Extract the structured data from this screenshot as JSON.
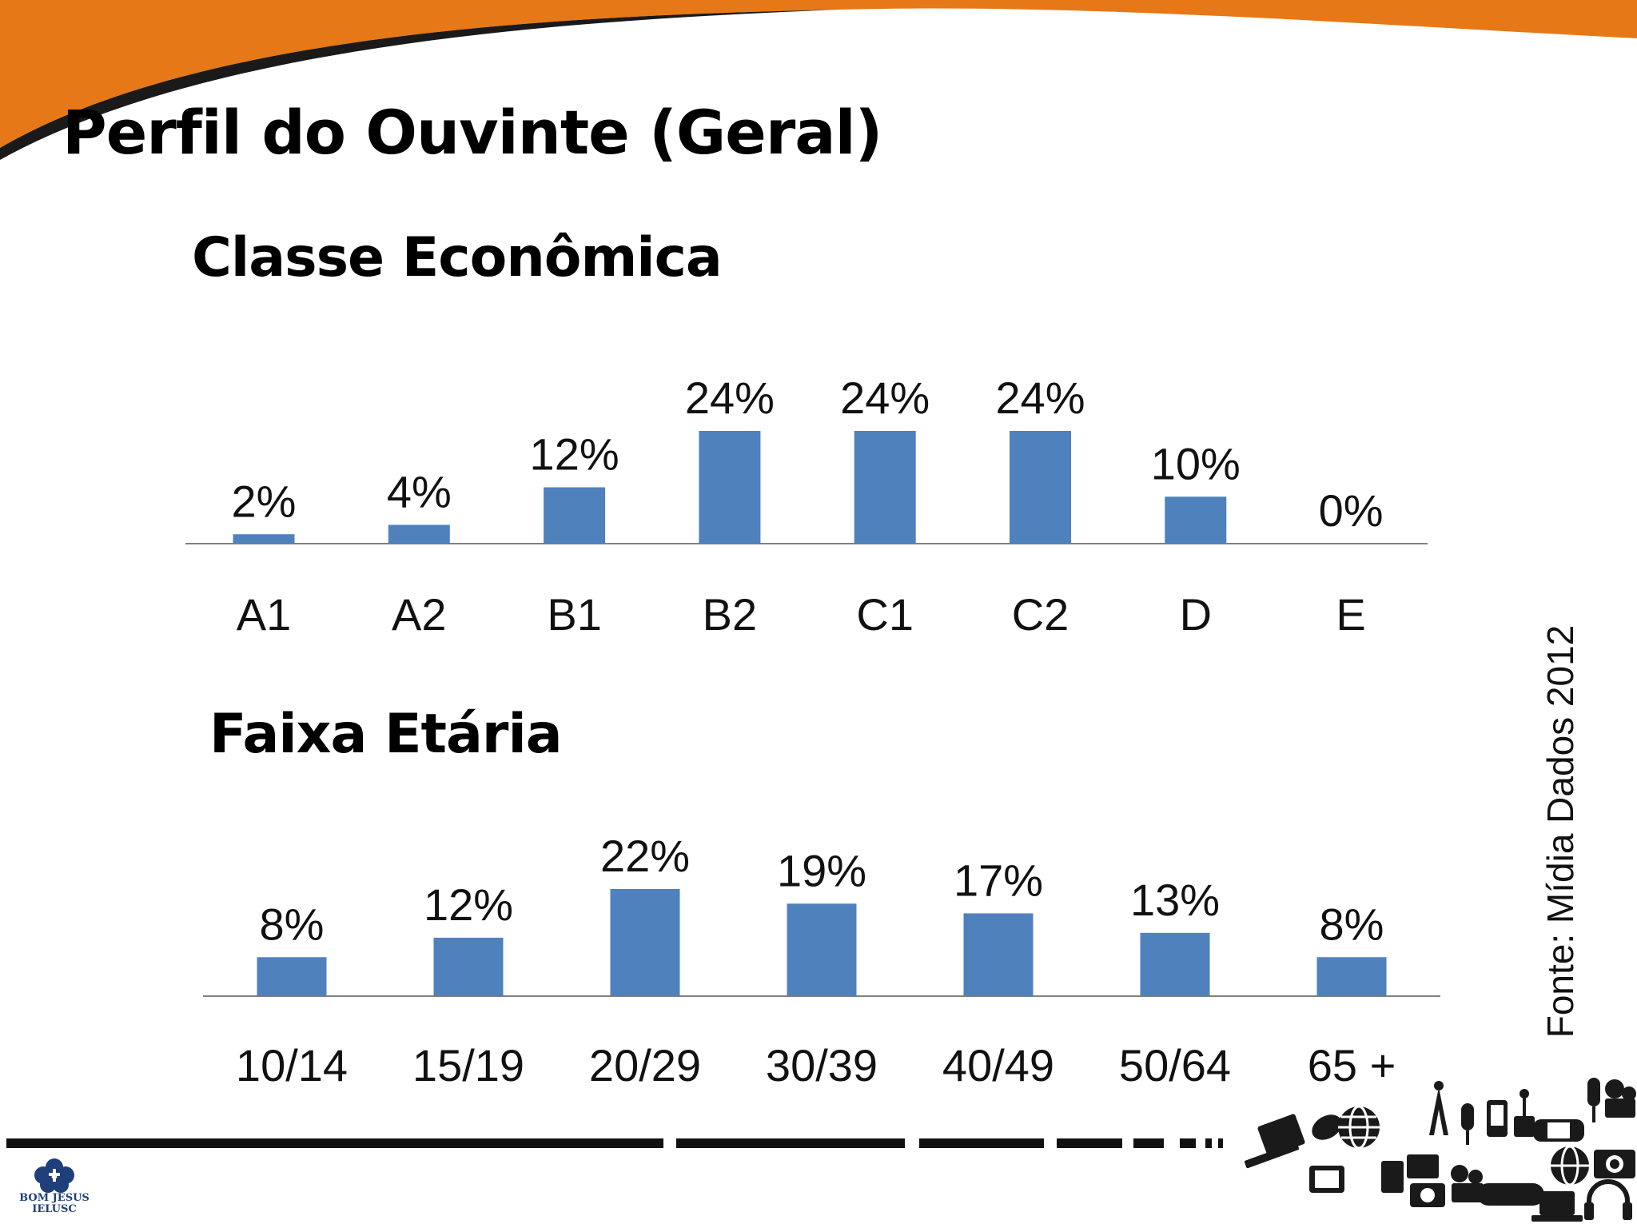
{
  "slide": {
    "title": "Perfil do Ouvinte (Geral)",
    "source": "Fonte: Mídia Dados 2012",
    "logo": {
      "line1": "BOM JESUS",
      "line2": "IELUSC"
    },
    "colors": {
      "accent_orange": "#E67817",
      "bar": "#4F81BD",
      "axis": "#808080",
      "text": "#111111"
    }
  },
  "chart_data": [
    {
      "type": "bar",
      "title": "Classe Econômica",
      "categories": [
        "A1",
        "A2",
        "B1",
        "B2",
        "C1",
        "C2",
        "D",
        "E"
      ],
      "values": [
        2,
        4,
        12,
        24,
        24,
        24,
        10,
        0
      ],
      "data_labels": [
        "2%",
        "4%",
        "12%",
        "24%",
        "24%",
        "24%",
        "10%",
        "0%"
      ],
      "unit": "%",
      "ylim": [
        0,
        24
      ],
      "grid": false,
      "legend": "none"
    },
    {
      "type": "bar",
      "title": "Faixa Etária",
      "categories": [
        "10/14",
        "15/19",
        "20/29",
        "30/39",
        "40/49",
        "50/64",
        "65 +"
      ],
      "values": [
        8,
        12,
        22,
        19,
        17,
        13,
        8
      ],
      "data_labels": [
        "8%",
        "12%",
        "22%",
        "19%",
        "17%",
        "13%",
        "8%"
      ],
      "unit": "%",
      "ylim": [
        0,
        22
      ],
      "grid": false,
      "legend": "none"
    }
  ]
}
